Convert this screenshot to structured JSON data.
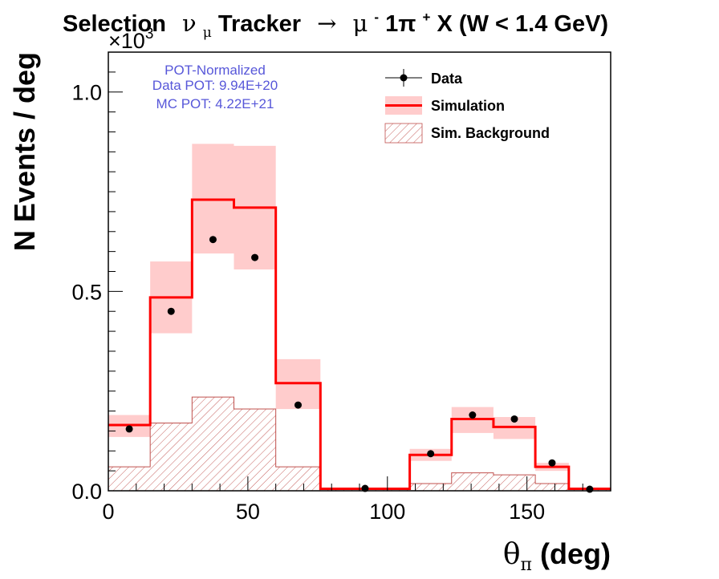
{
  "title": {
    "part1": "Selection",
    "nu": "ν",
    "mu_sub": "μ",
    "part2": " Tracker",
    "arrow": "→",
    "mu": "μ",
    "minus": "-",
    "part3": " 1π",
    "plus": "+",
    "part4": " X  (W < 1.4 GeV)"
  },
  "multiplier": "×10",
  "multiplier_exp": "3",
  "pot_box": {
    "line1": "POT-Normalized",
    "line2": "Data POT: 9.94E+20",
    "line3": "MC POT: 4.22E+21"
  },
  "legend": {
    "data": "Data",
    "simulation": "Simulation",
    "background": "Sim. Background"
  },
  "colors": {
    "simulation_line": "#ff0000",
    "simulation_band": "#ffcccc",
    "background_hatch": "#c0504d",
    "data_marker": "#000000",
    "pot_text": "#5757d9"
  },
  "chart_data": {
    "type": "histogram",
    "xlabel_symbol": "θ",
    "xlabel_sub": "π",
    "xlabel_rest": " (deg)",
    "ylabel": "N Events / deg",
    "xlim": [
      0,
      180
    ],
    "ylim": [
      0,
      1.1
    ],
    "y_multiplier": 1000,
    "x_ticks": [
      "0",
      "50",
      "100",
      "150"
    ],
    "y_ticks": [
      "0.0",
      "0.5",
      "1.0"
    ],
    "bin_edges": [
      0,
      15,
      30,
      45,
      60,
      76,
      108,
      123,
      138,
      153,
      165,
      180
    ],
    "simulation": [
      0.165,
      0.485,
      0.73,
      0.71,
      0.27,
      0.005,
      0.09,
      0.18,
      0.16,
      0.06,
      0.005
    ],
    "simulation_err_low": [
      0.135,
      0.395,
      0.595,
      0.555,
      0.205,
      0.004,
      0.075,
      0.145,
      0.13,
      0.05,
      0.004
    ],
    "simulation_err_high": [
      0.19,
      0.575,
      0.87,
      0.865,
      0.33,
      0.006,
      0.105,
      0.21,
      0.185,
      0.07,
      0.006
    ],
    "background": [
      0.06,
      0.17,
      0.235,
      0.205,
      0.06,
      0.004,
      0.018,
      0.045,
      0.04,
      0.018,
      0.003
    ],
    "data": [
      {
        "x": 7.5,
        "y": 0.155
      },
      {
        "x": 22.5,
        "y": 0.45
      },
      {
        "x": 37.5,
        "y": 0.63
      },
      {
        "x": 52.5,
        "y": 0.585
      },
      {
        "x": 68,
        "y": 0.215
      },
      {
        "x": 92,
        "y": 0.006
      },
      {
        "x": 115.5,
        "y": 0.093
      },
      {
        "x": 130.5,
        "y": 0.19
      },
      {
        "x": 145.5,
        "y": 0.18
      },
      {
        "x": 159,
        "y": 0.07
      },
      {
        "x": 172.5,
        "y": 0.004
      }
    ]
  }
}
